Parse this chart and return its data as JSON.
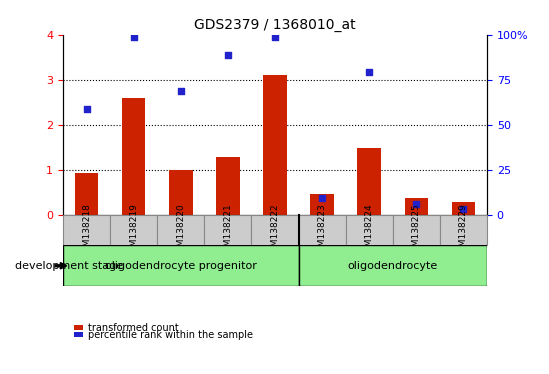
{
  "title": "GDS2379 / 1368010_at",
  "samples": [
    "GSM138218",
    "GSM138219",
    "GSM138220",
    "GSM138221",
    "GSM138222",
    "GSM138223",
    "GSM138224",
    "GSM138225",
    "GSM138229"
  ],
  "red_values": [
    0.93,
    2.6,
    1.0,
    1.3,
    3.1,
    0.48,
    1.5,
    0.38,
    0.3
  ],
  "blue_values": [
    2.35,
    3.95,
    2.75,
    3.55,
    3.95,
    0.38,
    3.18,
    0.25,
    0.15
  ],
  "red_color": "#cc2200",
  "blue_color": "#2222cc",
  "ylim_left": [
    0,
    4
  ],
  "ylim_right": [
    0,
    100
  ],
  "yticks_left": [
    0,
    1,
    2,
    3,
    4
  ],
  "yticks_right": [
    0,
    25,
    50,
    75,
    100
  ],
  "yticklabels_right": [
    "0",
    "25",
    "50",
    "75",
    "100%"
  ],
  "groups": [
    {
      "label": "oligodendrocyte progenitor",
      "start": 0,
      "end": 5,
      "color": "#90ee90"
    },
    {
      "label": "oligodendrocyte",
      "start": 5,
      "end": 9,
      "color": "#90ee90"
    }
  ],
  "group_sep_idx": 5,
  "stage_label": "development stage",
  "legend_red": "transformed count",
  "legend_blue": "percentile rank within the sample",
  "bar_width": 0.5,
  "tick_box_color": "#cccccc",
  "tick_box_edgecolor": "#888888"
}
